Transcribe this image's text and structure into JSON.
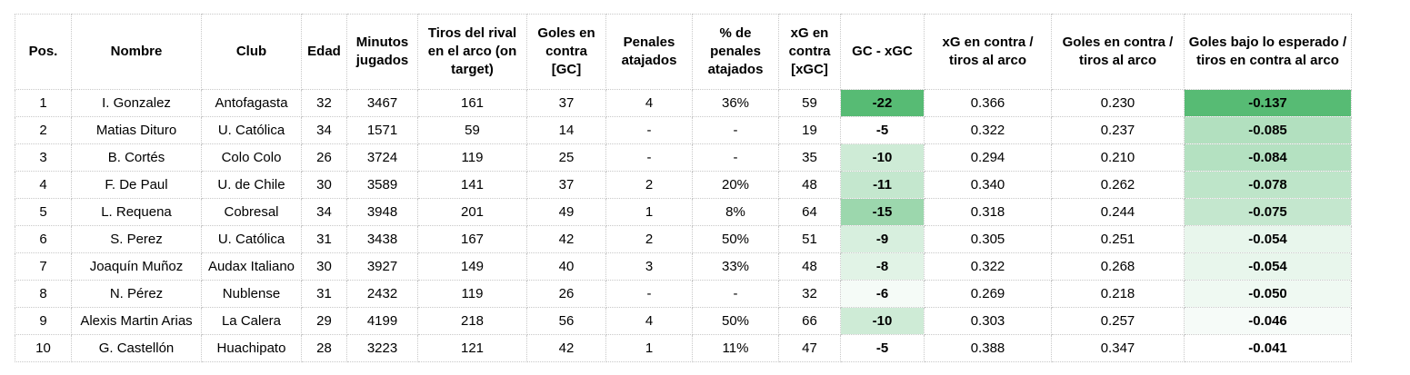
{
  "columns": [
    {
      "key": "pos",
      "label": "Pos."
    },
    {
      "key": "nombre",
      "label": "Nombre"
    },
    {
      "key": "club",
      "label": "Club"
    },
    {
      "key": "edad",
      "label": "Edad"
    },
    {
      "key": "minutos",
      "label": "Minutos jugados"
    },
    {
      "key": "tiros",
      "label": "Tiros del rival en el arco (on target)"
    },
    {
      "key": "gc",
      "label": "Goles en contra [GC]"
    },
    {
      "key": "penales",
      "label": "Penales atajados"
    },
    {
      "key": "pct_penales",
      "label": "% de penales atajados"
    },
    {
      "key": "xgc",
      "label": "xG en contra [xGC]"
    },
    {
      "key": "gc_xgc",
      "label": "GC - xGC"
    },
    {
      "key": "xg_tiros",
      "label": "xG en contra / tiros al arco"
    },
    {
      "key": "gc_tiros",
      "label": "Goles en contra / tiros al arco"
    },
    {
      "key": "bajo_esperado",
      "label": "Goles bajo lo esperado / tiros en contra al arco"
    }
  ],
  "rows": [
    {
      "pos": "1",
      "nombre": "I. Gonzalez",
      "club": "Antofagasta",
      "edad": "32",
      "minutos": "3467",
      "tiros": "161",
      "gc": "37",
      "penales": "4",
      "pct_penales": "36%",
      "xgc": "59",
      "gc_xgc": "-22",
      "xg_tiros": "0.366",
      "gc_tiros": "0.230",
      "bajo_esperado": "-0.137"
    },
    {
      "pos": "2",
      "nombre": "Matias Dituro",
      "club": "U. Católica",
      "edad": "34",
      "minutos": "1571",
      "tiros": "59",
      "gc": "14",
      "penales": "-",
      "pct_penales": "-",
      "xgc": "19",
      "gc_xgc": "-5",
      "xg_tiros": "0.322",
      "gc_tiros": "0.237",
      "bajo_esperado": "-0.085"
    },
    {
      "pos": "3",
      "nombre": "B. Cortés",
      "club": "Colo Colo",
      "edad": "26",
      "minutos": "3724",
      "tiros": "119",
      "gc": "25",
      "penales": "-",
      "pct_penales": "-",
      "xgc": "35",
      "gc_xgc": "-10",
      "xg_tiros": "0.294",
      "gc_tiros": "0.210",
      "bajo_esperado": "-0.084"
    },
    {
      "pos": "4",
      "nombre": "F. De Paul",
      "club": "U. de Chile",
      "edad": "30",
      "minutos": "3589",
      "tiros": "141",
      "gc": "37",
      "penales": "2",
      "pct_penales": "20%",
      "xgc": "48",
      "gc_xgc": "-11",
      "xg_tiros": "0.340",
      "gc_tiros": "0.262",
      "bajo_esperado": "-0.078"
    },
    {
      "pos": "5",
      "nombre": "L. Requena",
      "club": "Cobresal",
      "edad": "34",
      "minutos": "3948",
      "tiros": "201",
      "gc": "49",
      "penales": "1",
      "pct_penales": "8%",
      "xgc": "64",
      "gc_xgc": "-15",
      "xg_tiros": "0.318",
      "gc_tiros": "0.244",
      "bajo_esperado": "-0.075"
    },
    {
      "pos": "6",
      "nombre": "S. Perez",
      "club": "U. Católica",
      "edad": "31",
      "minutos": "3438",
      "tiros": "167",
      "gc": "42",
      "penales": "2",
      "pct_penales": "50%",
      "xgc": "51",
      "gc_xgc": "-9",
      "xg_tiros": "0.305",
      "gc_tiros": "0.251",
      "bajo_esperado": "-0.054"
    },
    {
      "pos": "7",
      "nombre": "Joaquín Muñoz",
      "club": "Audax Italiano",
      "edad": "30",
      "minutos": "3927",
      "tiros": "149",
      "gc": "40",
      "penales": "3",
      "pct_penales": "33%",
      "xgc": "48",
      "gc_xgc": "-8",
      "xg_tiros": "0.322",
      "gc_tiros": "0.268",
      "bajo_esperado": "-0.054"
    },
    {
      "pos": "8",
      "nombre": "N. Pérez",
      "club": "Nublense",
      "edad": "31",
      "minutos": "2432",
      "tiros": "119",
      "gc": "26",
      "penales": "-",
      "pct_penales": "-",
      "xgc": "32",
      "gc_xgc": "-6",
      "xg_tiros": "0.269",
      "gc_tiros": "0.218",
      "bajo_esperado": "-0.050"
    },
    {
      "pos": "9",
      "nombre": "Alexis Martin Arias",
      "club": "La Calera",
      "edad": "29",
      "minutos": "4199",
      "tiros": "218",
      "gc": "56",
      "penales": "4",
      "pct_penales": "50%",
      "xgc": "66",
      "gc_xgc": "-10",
      "xg_tiros": "0.303",
      "gc_tiros": "0.257",
      "bajo_esperado": "-0.046"
    },
    {
      "pos": "10",
      "nombre": "G. Castellón",
      "club": "Huachipato",
      "edad": "28",
      "minutos": "3223",
      "tiros": "121",
      "gc": "42",
      "penales": "1",
      "pct_penales": "11%",
      "xgc": "47",
      "gc_xgc": "-5",
      "xg_tiros": "0.388",
      "gc_tiros": "0.347",
      "bajo_esperado": "-0.041"
    }
  ],
  "heatmap_color": "#57bb74"
}
